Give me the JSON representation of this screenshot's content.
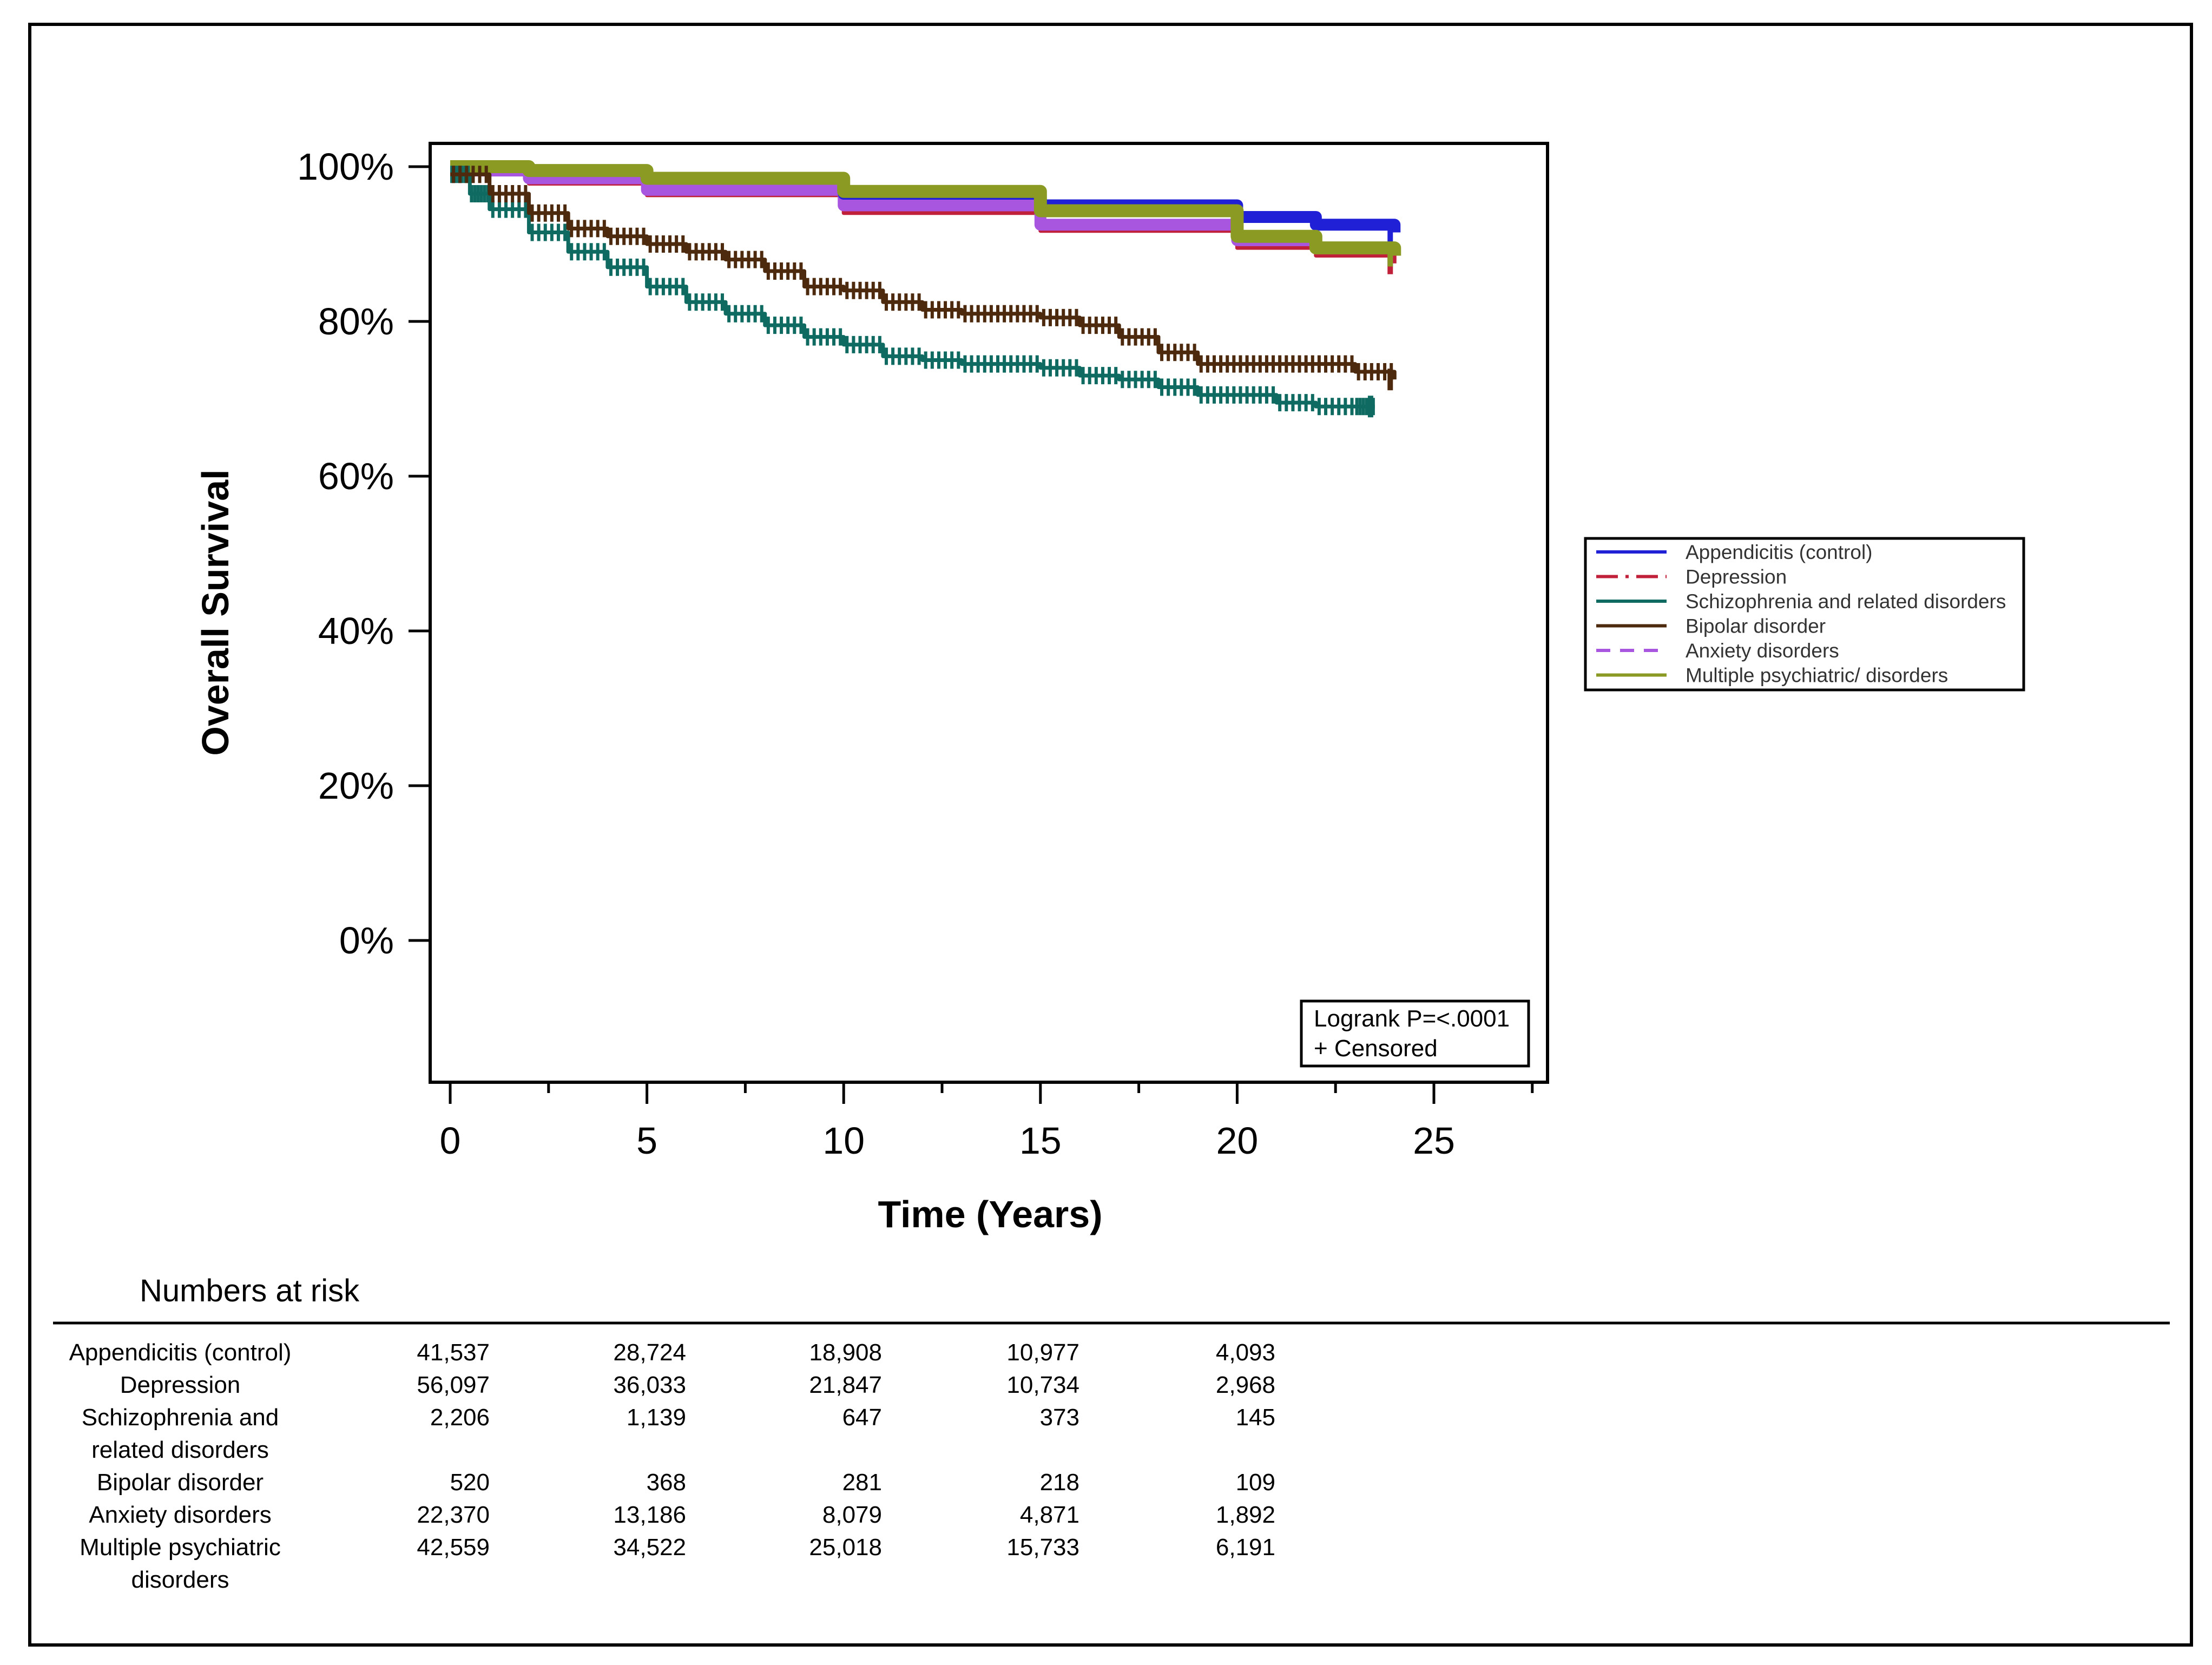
{
  "chart_data": {
    "type": "line",
    "subtype": "kaplan-meier",
    "title": "",
    "xlabel": "Time (Years)",
    "ylabel": "Overall Survival",
    "xlim": [
      -0.5,
      28
    ],
    "ylim": [
      -18,
      103
    ],
    "x_ticks": [
      0,
      5,
      10,
      15,
      20,
      25
    ],
    "x_tick_labels": [
      "0",
      "5",
      "10",
      "15",
      "20",
      "25"
    ],
    "y_ticks": [
      0,
      20,
      40,
      60,
      80,
      100
    ],
    "y_tick_labels": [
      "0%",
      "20%",
      "40%",
      "60%",
      "80%",
      "100%"
    ],
    "grid": false,
    "legend_position": "right",
    "series": [
      {
        "name": "Appendicitis (control)",
        "color": "#2020d6",
        "dash": "solid",
        "x": [
          0,
          2,
          5,
          10,
          15,
          20,
          22,
          24
        ],
        "y": [
          100,
          99.5,
          98.5,
          96.5,
          95,
          93.5,
          92.5,
          91.5
        ]
      },
      {
        "name": "Depression",
        "color": "#c0203a",
        "dash": "dashdot",
        "x": [
          0,
          2,
          5,
          10,
          15,
          20,
          22,
          24
        ],
        "y": [
          99,
          97.8,
          96.3,
          94,
          91.7,
          89.5,
          88.5,
          87.5
        ]
      },
      {
        "name": "Schizophrenia and related disorders",
        "color": "#0f6b62",
        "dash": "solid",
        "x": [
          0,
          0.5,
          1,
          2,
          3,
          4,
          5,
          6,
          7,
          8,
          9,
          10,
          11,
          12,
          13,
          14,
          15,
          16,
          17,
          18,
          19,
          20,
          21,
          22,
          23,
          23.5
        ],
        "y": [
          99,
          96.5,
          94.5,
          91.5,
          89,
          87,
          84.5,
          82.5,
          81,
          79.5,
          78,
          77,
          75.5,
          75,
          74.5,
          74.5,
          74,
          73,
          72.5,
          71.5,
          70.5,
          70.5,
          69.5,
          69,
          69,
          69
        ]
      },
      {
        "name": "Bipolar disorder",
        "color": "#4d2a0e",
        "dash": "solid",
        "x": [
          0,
          1,
          2,
          3,
          4,
          5,
          6,
          7,
          8,
          9,
          10,
          11,
          12,
          13,
          14,
          15,
          16,
          17,
          18,
          19,
          20,
          21,
          22,
          23,
          24
        ],
        "y": [
          99,
          96.5,
          94,
          92,
          91,
          90,
          89,
          88,
          86.5,
          84.5,
          84,
          82.5,
          81.5,
          81,
          81,
          80.5,
          79.5,
          78,
          76,
          74.5,
          74.5,
          74.5,
          74.5,
          73.5,
          72.5
        ]
      },
      {
        "name": "Anxiety disorders",
        "color": "#a855e0",
        "dash": "dashed",
        "x": [
          0,
          2,
          5,
          10,
          15,
          20,
          22,
          24
        ],
        "y": [
          99.5,
          98.5,
          97,
          95,
          92.5,
          90.5,
          89.5,
          88.5
        ]
      },
      {
        "name": "Multiple psychiatric/ disorders",
        "color": "#8a9a23",
        "dash": "solid",
        "x": [
          0,
          2,
          5,
          10,
          15,
          20,
          22,
          24
        ],
        "y": [
          100,
          99.5,
          98.5,
          96.8,
          94.3,
          91,
          89.5,
          88.5
        ]
      }
    ],
    "annotation": {
      "line1": "Logrank P=<.0001",
      "line2": "+ Censored"
    },
    "risk_table": {
      "title": "Numbers at risk",
      "times": [
        0,
        5,
        10,
        15,
        20
      ],
      "rows": [
        {
          "label": [
            "Appendicitis (control)"
          ],
          "values": [
            "41,537",
            "28,724",
            "18,908",
            "10,977",
            "4,093"
          ]
        },
        {
          "label": [
            "Depression"
          ],
          "values": [
            "56,097",
            "36,033",
            "21,847",
            "10,734",
            "2,968"
          ]
        },
        {
          "label": [
            "Schizophrenia and",
            "related disorders"
          ],
          "values": [
            "2,206",
            "1,139",
            "647",
            "373",
            "145"
          ]
        },
        {
          "label": [
            "Bipolar disorder"
          ],
          "values": [
            "520",
            "368",
            "281",
            "218",
            "109"
          ]
        },
        {
          "label": [
            "Anxiety disorders"
          ],
          "values": [
            "22,370",
            "13,186",
            "8,079",
            "4,871",
            "1,892"
          ]
        },
        {
          "label": [
            "Multiple psychiatric",
            "disorders"
          ],
          "values": [
            "42,559",
            "34,522",
            "25,018",
            "15,733",
            "6,191"
          ]
        }
      ]
    }
  }
}
